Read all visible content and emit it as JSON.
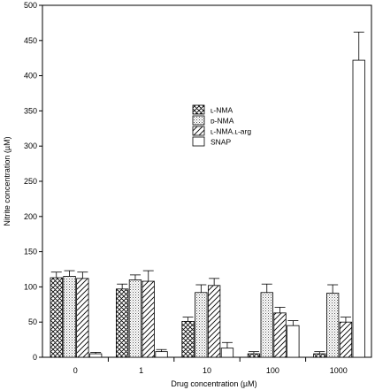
{
  "chart_data": {
    "type": "bar",
    "title": "",
    "xlabel": "Drug concentration (µM)",
    "ylabel": "Nitrite concentration (µM)",
    "ylim": [
      0,
      500
    ],
    "yticks": [
      0,
      50,
      100,
      150,
      200,
      250,
      300,
      350,
      400,
      450,
      500
    ],
    "categories": [
      "0",
      "1",
      "10",
      "100",
      "1000"
    ],
    "grid": false,
    "legend_position": "center",
    "series": [
      {
        "name": "L-NMA",
        "legend_label": "ʟ-NMA",
        "pattern": "crosshatch",
        "values": [
          113,
          97,
          51,
          5,
          5
        ],
        "errors": [
          8,
          7,
          6,
          3,
          3
        ]
      },
      {
        "name": "D-NMA",
        "legend_label": "ᴅ-NMA",
        "pattern": "dots",
        "values": [
          115,
          110,
          92,
          92,
          91
        ],
        "errors": [
          8,
          7,
          11,
          12,
          12
        ]
      },
      {
        "name": "L-NMA.L-arg",
        "legend_label": "ʟ-NMA.ʟ-arg",
        "pattern": "diagonal",
        "values": [
          112,
          108,
          102,
          63,
          50
        ],
        "errors": [
          9,
          15,
          10,
          8,
          7
        ]
      },
      {
        "name": "SNAP",
        "legend_label": "SNAP",
        "pattern": "none",
        "values": [
          5,
          8,
          13,
          45,
          422
        ],
        "errors": [
          2,
          3,
          8,
          7,
          40
        ]
      }
    ]
  }
}
